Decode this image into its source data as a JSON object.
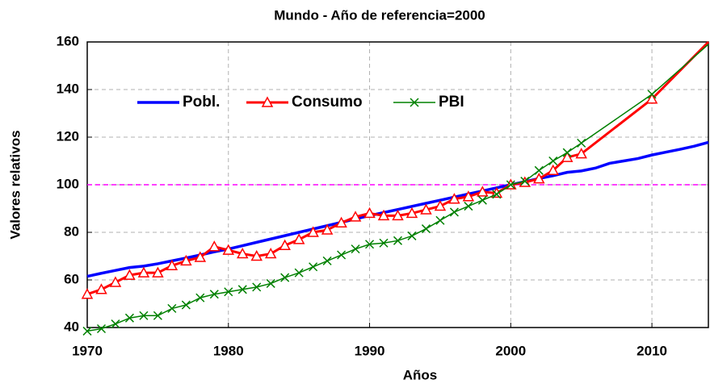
{
  "chart_data": {
    "type": "line",
    "title": "Mundo -  Año de referencia=2000",
    "x_label": "Años",
    "y_label": "Valores relativos",
    "xlim": [
      1970,
      2014
    ],
    "ylim": [
      40,
      160
    ],
    "xticks": [
      1970,
      1980,
      1990,
      2000,
      2010
    ],
    "yticks": [
      40,
      60,
      80,
      100,
      120,
      140,
      160
    ],
    "grid": true,
    "legend": "top-left",
    "reference_line": {
      "value": 100,
      "color": "#ff00ff"
    },
    "series": [
      {
        "name": "Pobl.",
        "color": "#0000ff",
        "marker": "none",
        "x": [
          1970,
          1971,
          1972,
          1973,
          1974,
          1975,
          1976,
          1977,
          1978,
          1979,
          1980,
          1981,
          1982,
          1983,
          1984,
          1985,
          1986,
          1987,
          1988,
          1989,
          1990,
          1991,
          1992,
          1993,
          1994,
          1995,
          1996,
          1997,
          1998,
          1999,
          2000,
          2001,
          2002,
          2003,
          2004,
          2005,
          2006,
          2007,
          2008,
          2009,
          2010,
          2011,
          2012,
          2013,
          2014
        ],
        "values": [
          61.5,
          62.8,
          64,
          65.2,
          65.8,
          66.8,
          68,
          69.2,
          70.5,
          71.8,
          73,
          74.4,
          75.8,
          77.2,
          78.6,
          80,
          81.4,
          82.8,
          84.2,
          85.6,
          87,
          88.3,
          89.6,
          90.9,
          92.2,
          93.5,
          94.8,
          96.1,
          97.4,
          98.7,
          100,
          101.3,
          102.6,
          103.8,
          105.2,
          105.8,
          107,
          109,
          110,
          111,
          112.5,
          113.7,
          114.9,
          116.2,
          117.8
        ]
      },
      {
        "name": "Consumo",
        "color": "#ff0000",
        "marker": "triangle",
        "x": [
          1970,
          1971,
          1972,
          1973,
          1974,
          1975,
          1976,
          1977,
          1978,
          1979,
          1980,
          1981,
          1982,
          1983,
          1984,
          1985,
          1986,
          1987,
          1988,
          1989,
          1990,
          1991,
          1992,
          1993,
          1994,
          1995,
          1996,
          1997,
          1998,
          1999,
          2000,
          2001,
          2002,
          2003,
          2004,
          2005,
          2010,
          2014
        ],
        "values": [
          54,
          56,
          59,
          62,
          63,
          63,
          66,
          68,
          69.5,
          74,
          72.5,
          71,
          70,
          71,
          74.5,
          77,
          80,
          81,
          84,
          86.5,
          88,
          87,
          87,
          88,
          89.5,
          91,
          94,
          95,
          97,
          96.5,
          100,
          101,
          102.5,
          106,
          111.5,
          113,
          136,
          160
        ]
      },
      {
        "name": "PBI",
        "color": "#008000",
        "marker": "x",
        "x": [
          1970,
          1971,
          1972,
          1973,
          1974,
          1975,
          1976,
          1977,
          1978,
          1979,
          1980,
          1981,
          1982,
          1983,
          1984,
          1985,
          1986,
          1987,
          1988,
          1989,
          1990,
          1991,
          1992,
          1993,
          1994,
          1995,
          1996,
          1997,
          1998,
          1999,
          2000,
          2001,
          2002,
          2003,
          2004,
          2005,
          2010,
          2014
        ],
        "values": [
          38.5,
          39.5,
          41.5,
          44,
          45,
          45,
          48,
          49.5,
          52.5,
          54,
          55,
          56,
          57,
          58.5,
          61,
          63,
          65.5,
          68,
          70.5,
          73,
          75,
          75.5,
          76.5,
          78.5,
          81.5,
          85,
          88.5,
          91,
          93.5,
          96,
          100,
          101.5,
          106,
          110,
          113.5,
          117.5,
          138,
          159
        ]
      }
    ]
  }
}
